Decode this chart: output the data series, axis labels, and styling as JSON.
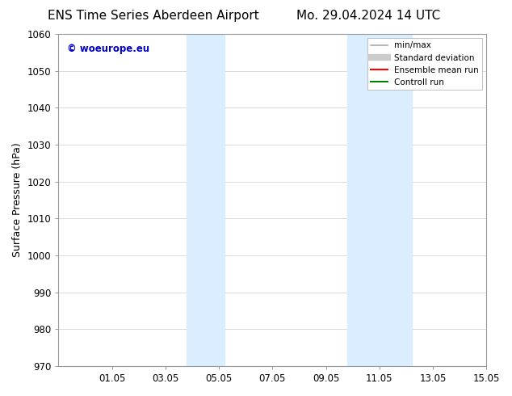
{
  "title_left": "ENS Time Series Aberdeen Airport",
  "title_right": "Mo. 29.04.2024 14 UTC",
  "ylabel": "Surface Pressure (hPa)",
  "ylim": [
    970,
    1060
  ],
  "yticks": [
    970,
    980,
    990,
    1000,
    1010,
    1020,
    1030,
    1040,
    1050,
    1060
  ],
  "xtick_labels": [
    "01.05",
    "03.05",
    "05.05",
    "07.05",
    "09.05",
    "11.05",
    "13.05",
    "15.05"
  ],
  "xtick_positions": [
    2,
    4,
    6,
    8,
    10,
    12,
    14,
    16
  ],
  "xlim": [
    0,
    16
  ],
  "shaded_bands": [
    {
      "x_start": 4.8,
      "x_end": 6.2
    },
    {
      "x_start": 10.8,
      "x_end": 13.2
    }
  ],
  "shaded_color": "#daeeff",
  "bg_color": "#ffffff",
  "watermark_text": "© woeurope.eu",
  "watermark_color": "#0000cc",
  "legend_entries": [
    {
      "label": "min/max",
      "color": "#aaaaaa",
      "lw": 1.2,
      "style": "solid"
    },
    {
      "label": "Standard deviation",
      "color": "#cccccc",
      "lw": 6,
      "style": "solid"
    },
    {
      "label": "Ensemble mean run",
      "color": "#ff0000",
      "lw": 1.5,
      "style": "solid"
    },
    {
      "label": "Controll run",
      "color": "#008000",
      "lw": 1.5,
      "style": "solid"
    }
  ],
  "grid_color": "#cccccc",
  "title_fontsize": 11,
  "axis_label_fontsize": 9,
  "tick_fontsize": 8.5,
  "watermark_fontsize": 8.5,
  "legend_fontsize": 7.5
}
